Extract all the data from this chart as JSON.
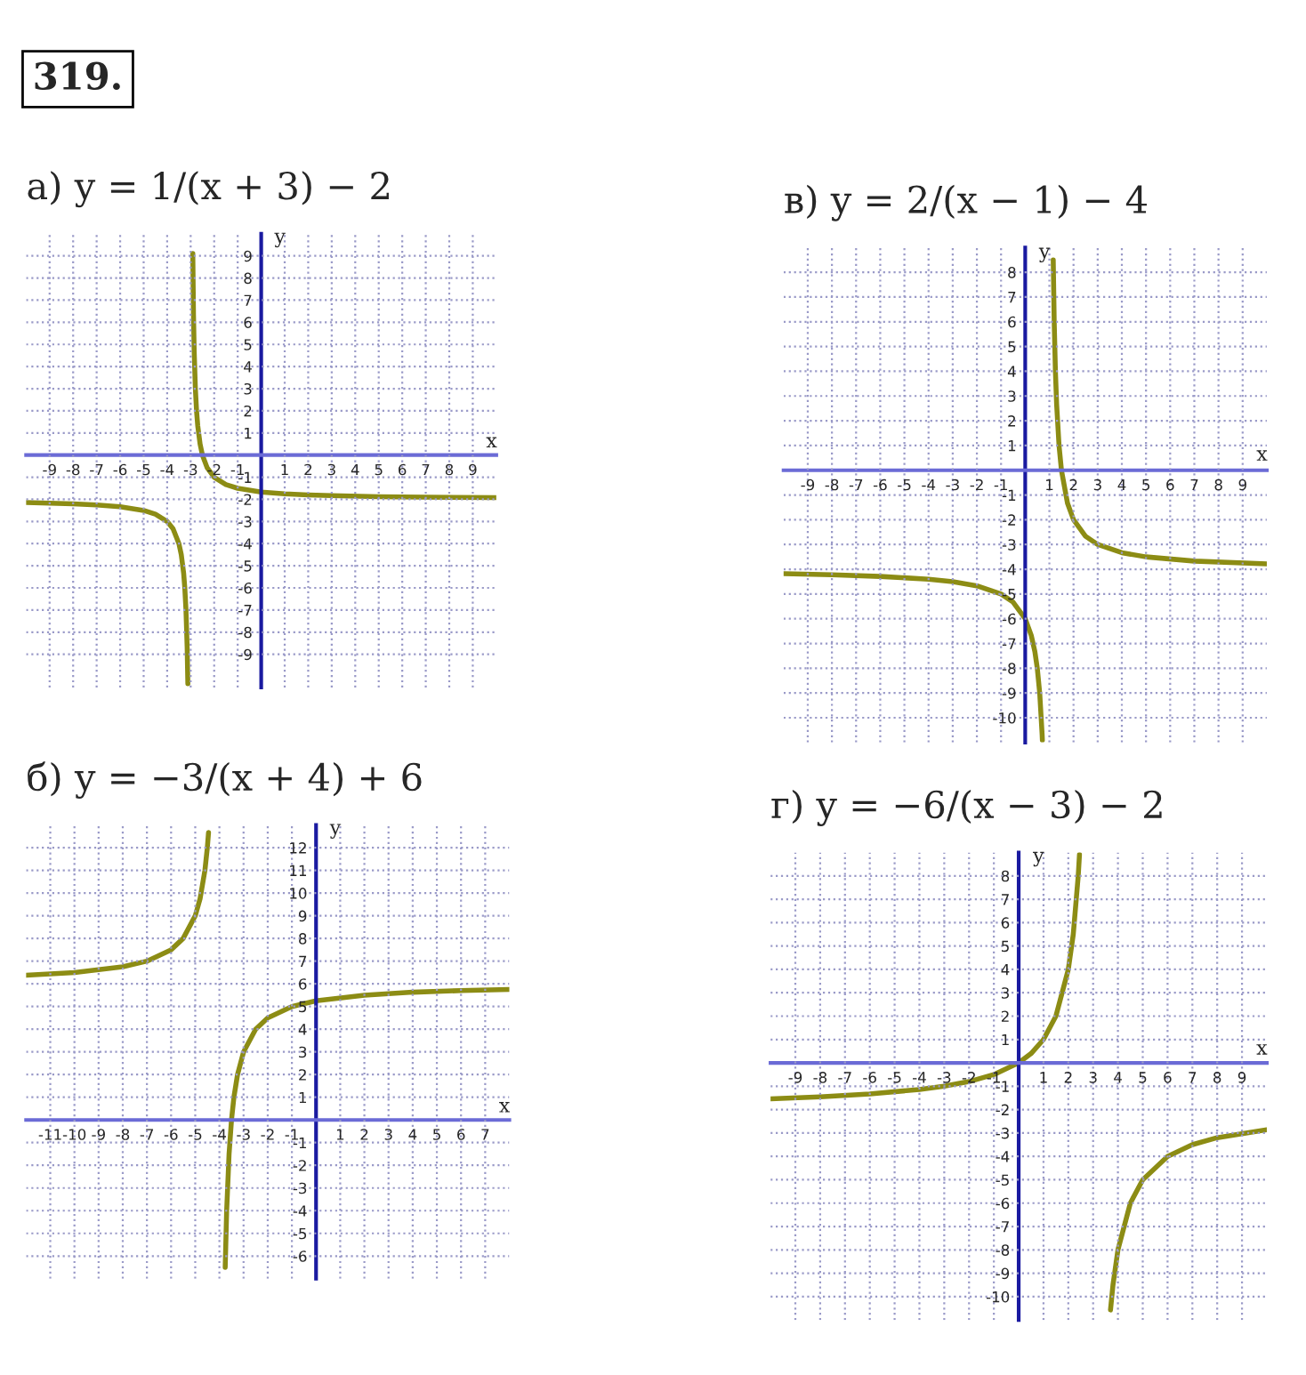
{
  "chart_data": [
    {
      "type": "line",
      "title": "а) y = 1/(x + 3) − 2",
      "xlabel": "x",
      "ylabel": "y",
      "annotations": [
        "319."
      ],
      "grid": true,
      "legend": false,
      "xlim": [
        -10,
        10
      ],
      "ylim": [
        -10.5,
        10
      ],
      "xticks": [
        -9,
        -8,
        -7,
        -6,
        -5,
        -4,
        -3,
        -2,
        -1,
        1,
        2,
        3,
        4,
        5,
        6,
        7,
        8,
        9
      ],
      "yticks": [
        -9,
        -8,
        -7,
        -6,
        -5,
        -4,
        -3,
        -2,
        -1,
        1,
        2,
        3,
        4,
        5,
        6,
        7,
        8,
        9
      ],
      "series": [
        {
          "color": "#8c8c14",
          "x": [
            -10,
            -9,
            -8,
            -7,
            -6,
            -5,
            -4.5,
            -4,
            -3.75,
            -3.5,
            -3.4,
            -3.3,
            -3.25,
            -3.2,
            -3.15,
            -3.12
          ],
          "values": [
            -2.14,
            -2.17,
            -2.2,
            -2.25,
            -2.33,
            -2.5,
            -2.67,
            -3,
            -3.33,
            -4,
            -4.5,
            -5.33,
            -6,
            -7,
            -8.67,
            -10.33
          ]
        },
        {
          "color": "#8c8c14",
          "x": [
            -2.91,
            -2.88,
            -2.85,
            -2.8,
            -2.75,
            -2.7,
            -2.6,
            -2.5,
            -2.3,
            -2,
            -1.5,
            -1,
            0,
            1,
            2,
            3,
            5,
            7,
            10
          ],
          "values": [
            9.11,
            6.33,
            4.67,
            3,
            2,
            1.33,
            0.5,
            0,
            -0.57,
            -1,
            -1.33,
            -1.5,
            -1.67,
            -1.75,
            -1.8,
            -1.83,
            -1.88,
            -1.9,
            -1.92
          ]
        }
      ]
    },
    {
      "type": "line",
      "title": "в) y = 2/(x − 1) − 4",
      "xlabel": "x",
      "ylabel": "y",
      "grid": true,
      "legend": false,
      "xlim": [
        -10,
        10
      ],
      "ylim": [
        -11,
        9
      ],
      "xticks": [
        -9,
        -8,
        -7,
        -6,
        -5,
        -4,
        -3,
        -2,
        -1,
        1,
        2,
        3,
        4,
        5,
        6,
        7,
        8,
        9
      ],
      "yticks": [
        -10,
        -9,
        -8,
        -7,
        -6,
        -5,
        -4,
        -3,
        -2,
        -1,
        1,
        2,
        3,
        4,
        5,
        6,
        7,
        8
      ],
      "series": [
        {
          "color": "#8c8c14",
          "x": [
            -10,
            -8,
            -6,
            -4,
            -3,
            -2,
            -1,
            -0.5,
            0,
            0.25,
            0.4,
            0.5,
            0.6,
            0.7,
            0.71
          ],
          "values": [
            -4.18,
            -4.22,
            -4.29,
            -4.4,
            -4.5,
            -4.67,
            -5,
            -5.33,
            -6,
            -6.67,
            -7.33,
            -8,
            -9,
            -10.67,
            -10.9
          ]
        },
        {
          "color": "#8c8c14",
          "x": [
            1.16,
            1.2,
            1.25,
            1.3,
            1.4,
            1.5,
            1.75,
            2,
            2.5,
            3,
            4,
            5,
            7,
            10
          ],
          "values": [
            8.5,
            6,
            4,
            2.67,
            1,
            0,
            -1.33,
            -2,
            -2.67,
            -3,
            -3.33,
            -3.5,
            -3.67,
            -3.78
          ]
        }
      ]
    },
    {
      "type": "line",
      "title": "б) y = −3/(x + 4) + 6",
      "xlabel": "x",
      "ylabel": "y",
      "grid": true,
      "legend": false,
      "xlim": [
        -12,
        8
      ],
      "ylim": [
        -7,
        13
      ],
      "xticks": [
        -11,
        -10,
        -9,
        -8,
        -7,
        -6,
        -5,
        -4,
        -3,
        -2,
        -1,
        1,
        2,
        3,
        4,
        5,
        6,
        7
      ],
      "yticks": [
        -6,
        -5,
        -4,
        -3,
        -2,
        -1,
        1,
        2,
        3,
        4,
        5,
        6,
        7,
        8,
        9,
        10,
        11,
        12
      ],
      "series": [
        {
          "color": "#8c8c14",
          "x": [
            -12,
            -10,
            -8,
            -7,
            -6,
            -5.5,
            -5,
            -4.8,
            -4.6,
            -4.5,
            -4.45
          ],
          "values": [
            6.38,
            6.5,
            6.75,
            7,
            7.5,
            8,
            9,
            9.75,
            11,
            12,
            12.67
          ]
        },
        {
          "color": "#8c8c14",
          "x": [
            -3.76,
            -3.7,
            -3.6,
            -3.5,
            -3.4,
            -3.25,
            -3,
            -2.5,
            -2,
            -1,
            0,
            2,
            4,
            6,
            8
          ],
          "values": [
            -6.5,
            -4,
            -1.5,
            0,
            1,
            2,
            3,
            4,
            4.5,
            5,
            5.25,
            5.5,
            5.63,
            5.7,
            5.75
          ]
        }
      ]
    },
    {
      "type": "line",
      "title": "г) y = −6/(x − 3) − 2",
      "xlabel": "x",
      "ylabel": "y",
      "grid": true,
      "legend": false,
      "xlim": [
        -10,
        10
      ],
      "ylim": [
        -11,
        9
      ],
      "xticks": [
        -9,
        -8,
        -7,
        -6,
        -5,
        -4,
        -3,
        -2,
        -1,
        1,
        2,
        3,
        4,
        5,
        6,
        7,
        8,
        9
      ],
      "yticks": [
        -10,
        -9,
        -8,
        -7,
        -6,
        -5,
        -4,
        -3,
        -2,
        -1,
        1,
        2,
        3,
        4,
        5,
        6,
        7,
        8
      ],
      "series": [
        {
          "color": "#8c8c14",
          "x": [
            -10,
            -8,
            -6,
            -4,
            -3,
            -2,
            -1,
            0,
            0.5,
            1,
            1.5,
            2,
            2.2,
            2.4,
            2.45
          ],
          "values": [
            -1.54,
            -1.45,
            -1.33,
            -1.14,
            -1,
            -0.8,
            -0.5,
            0,
            0.4,
            1,
            2,
            4,
            5.5,
            8,
            8.91
          ]
        },
        {
          "color": "#8c8c14",
          "x": [
            3.7,
            3.8,
            4,
            4.5,
            5,
            6,
            7,
            8,
            10
          ],
          "values": [
            -10.57,
            -9.5,
            -8,
            -6,
            -5,
            -4,
            -3.5,
            -3.2,
            -2.86
          ]
        }
      ]
    }
  ]
}
